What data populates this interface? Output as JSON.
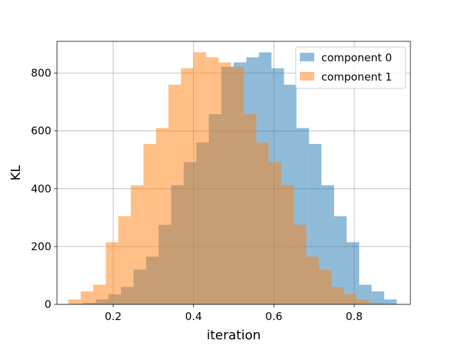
{
  "chart_data": {
    "type": "bar",
    "xlabel": "iteration",
    "ylabel": "KL",
    "xlim": [
      0.06,
      0.94
    ],
    "ylim": [
      0,
      910
    ],
    "grid": true,
    "legend_position": "upper right",
    "x_ticks": [
      0.2,
      0.4,
      0.6,
      0.8
    ],
    "y_ticks": [
      0,
      200,
      400,
      600,
      800
    ],
    "x_tick_labels": [
      "0.2",
      "0.4",
      "0.6",
      "0.8"
    ],
    "y_tick_labels": [
      "0",
      "200",
      "400",
      "600",
      "800"
    ],
    "series": [
      {
        "name": "component 0",
        "color": "#1f77b4",
        "opacity": 0.5,
        "bin_start": 0.126,
        "bin_width": 0.0312,
        "values": [
          5,
          17,
          35,
          60,
          120,
          165,
          275,
          412,
          492,
          560,
          658,
          822,
          837,
          855,
          872,
          817,
          760,
          610,
          555,
          412,
          305,
          215,
          68,
          45,
          17
        ]
      },
      {
        "name": "component 1",
        "color": "#ff7f0e",
        "opacity": 0.5,
        "bin_start": 0.088,
        "bin_width": 0.0312,
        "values": [
          17,
          45,
          68,
          215,
          305,
          412,
          555,
          610,
          760,
          817,
          872,
          855,
          837,
          822,
          658,
          560,
          492,
          412,
          275,
          165,
          120,
          60,
          35,
          17,
          5
        ]
      }
    ]
  }
}
